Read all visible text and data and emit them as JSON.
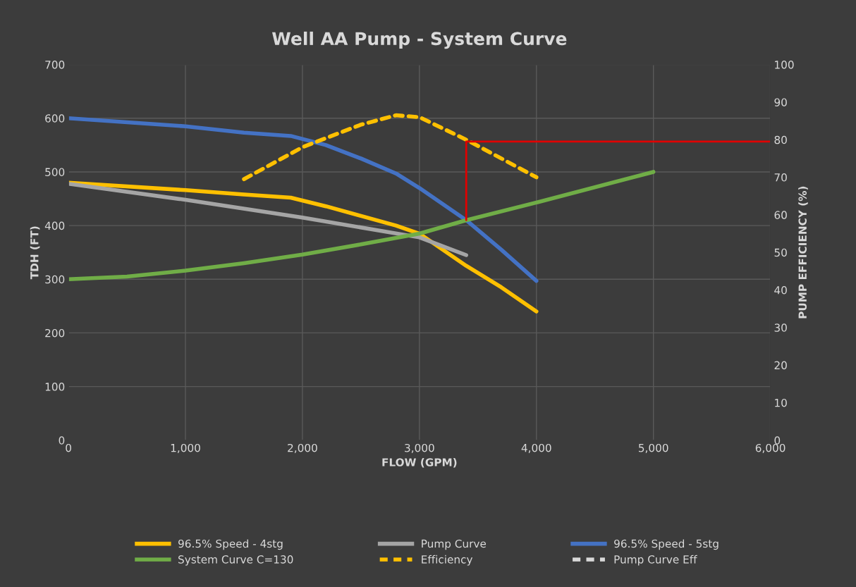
{
  "chart_data": {
    "type": "line",
    "title": "Well AA Pump - System Curve",
    "xlabel": "FLOW (GPM)",
    "ylabel": "TDH (FT)",
    "y2label": "PUMP EFFICIENCY (%)",
    "xlim": [
      0,
      6000
    ],
    "xticks": [
      {
        "value": 0,
        "label": "0"
      },
      {
        "value": 1000,
        "label": "1,000"
      },
      {
        "value": 2000,
        "label": "2,000"
      },
      {
        "value": 3000,
        "label": "3,000"
      },
      {
        "value": 4000,
        "label": "4,000"
      },
      {
        "value": 5000,
        "label": "5,000"
      },
      {
        "value": 6000,
        "label": "6,000"
      }
    ],
    "ylim": [
      0,
      700
    ],
    "yticks": [
      0,
      100,
      200,
      300,
      400,
      500,
      600,
      700
    ],
    "y2lim": [
      0,
      100
    ],
    "y2ticks": [
      0,
      10,
      20,
      30,
      40,
      50,
      60,
      70,
      80,
      90,
      100
    ],
    "grid": true,
    "legend": "bottom",
    "series": [
      {
        "name": "96.5% Speed - 4stg",
        "color": "#ffc000",
        "x": [
          0,
          1000,
          1500,
          1900,
          2200,
          2500,
          2800,
          3000,
          3400,
          3700,
          4000
        ],
        "values": [
          480,
          466,
          458,
          452,
          436,
          418,
          400,
          385,
          325,
          285,
          240
        ]
      },
      {
        "name": "Pump Curve",
        "color": "#a5a5a5",
        "x": [
          0,
          1000,
          2000,
          3000,
          3400
        ],
        "values": [
          478,
          448,
          415,
          378,
          345
        ]
      },
      {
        "name": "96.5% Speed - 5stg",
        "color": "#4472c4",
        "x": [
          0,
          1000,
          1500,
          1900,
          2200,
          2500,
          2800,
          3000,
          3400,
          3700,
          4000
        ],
        "values": [
          600,
          585,
          573,
          567,
          550,
          525,
          497,
          470,
          410,
          355,
          297
        ]
      },
      {
        "name": "System Curve C=130",
        "color": "#70ad47",
        "x": [
          0,
          500,
          1000,
          1500,
          2000,
          2500,
          3000,
          3400,
          4000,
          5000
        ],
        "values": [
          300,
          305,
          316,
          330,
          346,
          365,
          385,
          410,
          443,
          500
        ]
      },
      {
        "name": "Efficiency",
        "color": "#ffc000",
        "axis": "y2",
        "line_style": "dashed",
        "x": [
          1500,
          2000,
          2500,
          2800,
          3000,
          3400,
          4000
        ],
        "values": [
          69.5,
          78,
          84,
          86.5,
          86,
          80,
          70
        ]
      },
      {
        "name": "Pump Curve Eff",
        "color": "#d9d9d9",
        "axis": "y2",
        "line_style": "dashed"
      },
      {
        "color": "#e00000",
        "axis": "y2",
        "x": [
          3400,
          3400,
          6000
        ],
        "values": [
          58.6,
          79.5,
          79.5
        ]
      }
    ]
  }
}
